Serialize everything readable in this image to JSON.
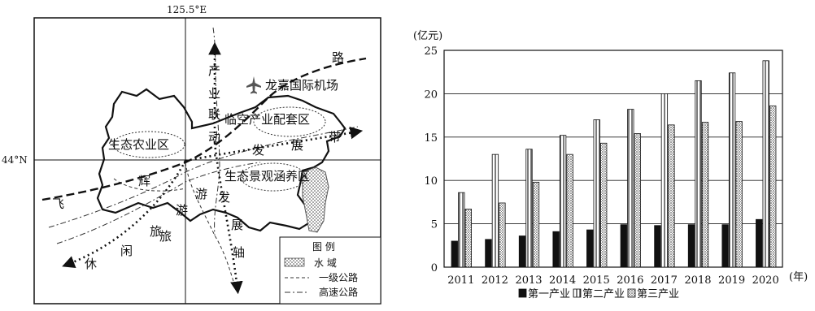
{
  "map": {
    "longitude_label": "125.5°E",
    "latitude_label": "44°N",
    "road_label": "路",
    "airport_label": "龙嘉国际机场",
    "zones": [
      {
        "label": "生态农业区"
      },
      {
        "label": "临空产业配套区"
      },
      {
        "label": "生态景观涵养区"
      }
    ],
    "axis_labels": {
      "vertical": [
        "产",
        "业",
        "联",
        "动"
      ],
      "east": [
        "发",
        "展",
        "带"
      ],
      "lower": [
        "发",
        "展",
        "轴"
      ],
      "diagonal_arm": "辉",
      "extra_chars": [
        "飞",
        "旅",
        "游"
      ],
      "leisure": [
        "休",
        "闲",
        "旅",
        "游"
      ]
    },
    "legend": {
      "title": "图  例",
      "items": [
        {
          "label": "水    域"
        },
        {
          "label": "一级公路"
        },
        {
          "label": "高速公路"
        }
      ]
    }
  },
  "chart_data": {
    "type": "bar",
    "ylabel": "(亿元)",
    "xunit": "(年)",
    "ylim": [
      0,
      25
    ],
    "yticks": [
      0,
      5,
      10,
      15,
      20,
      25
    ],
    "grid": true,
    "categories": [
      "2011",
      "2012",
      "2013",
      "2014",
      "2015",
      "2016",
      "2017",
      "2018",
      "2019",
      "2020"
    ],
    "series": [
      {
        "name": "第一产业",
        "values": [
          3.0,
          3.2,
          3.6,
          4.1,
          4.3,
          4.9,
          4.8,
          4.9,
          4.9,
          5.5
        ]
      },
      {
        "name": "第二产业",
        "values": [
          8.6,
          13.0,
          13.6,
          15.2,
          17.0,
          18.2,
          20.0,
          21.5,
          22.4,
          23.8
        ]
      },
      {
        "name": "第三产业",
        "values": [
          6.7,
          7.4,
          9.8,
          13.0,
          14.3,
          15.4,
          16.4,
          16.7,
          16.8,
          18.6
        ]
      }
    ],
    "legend_position": "bottom"
  }
}
